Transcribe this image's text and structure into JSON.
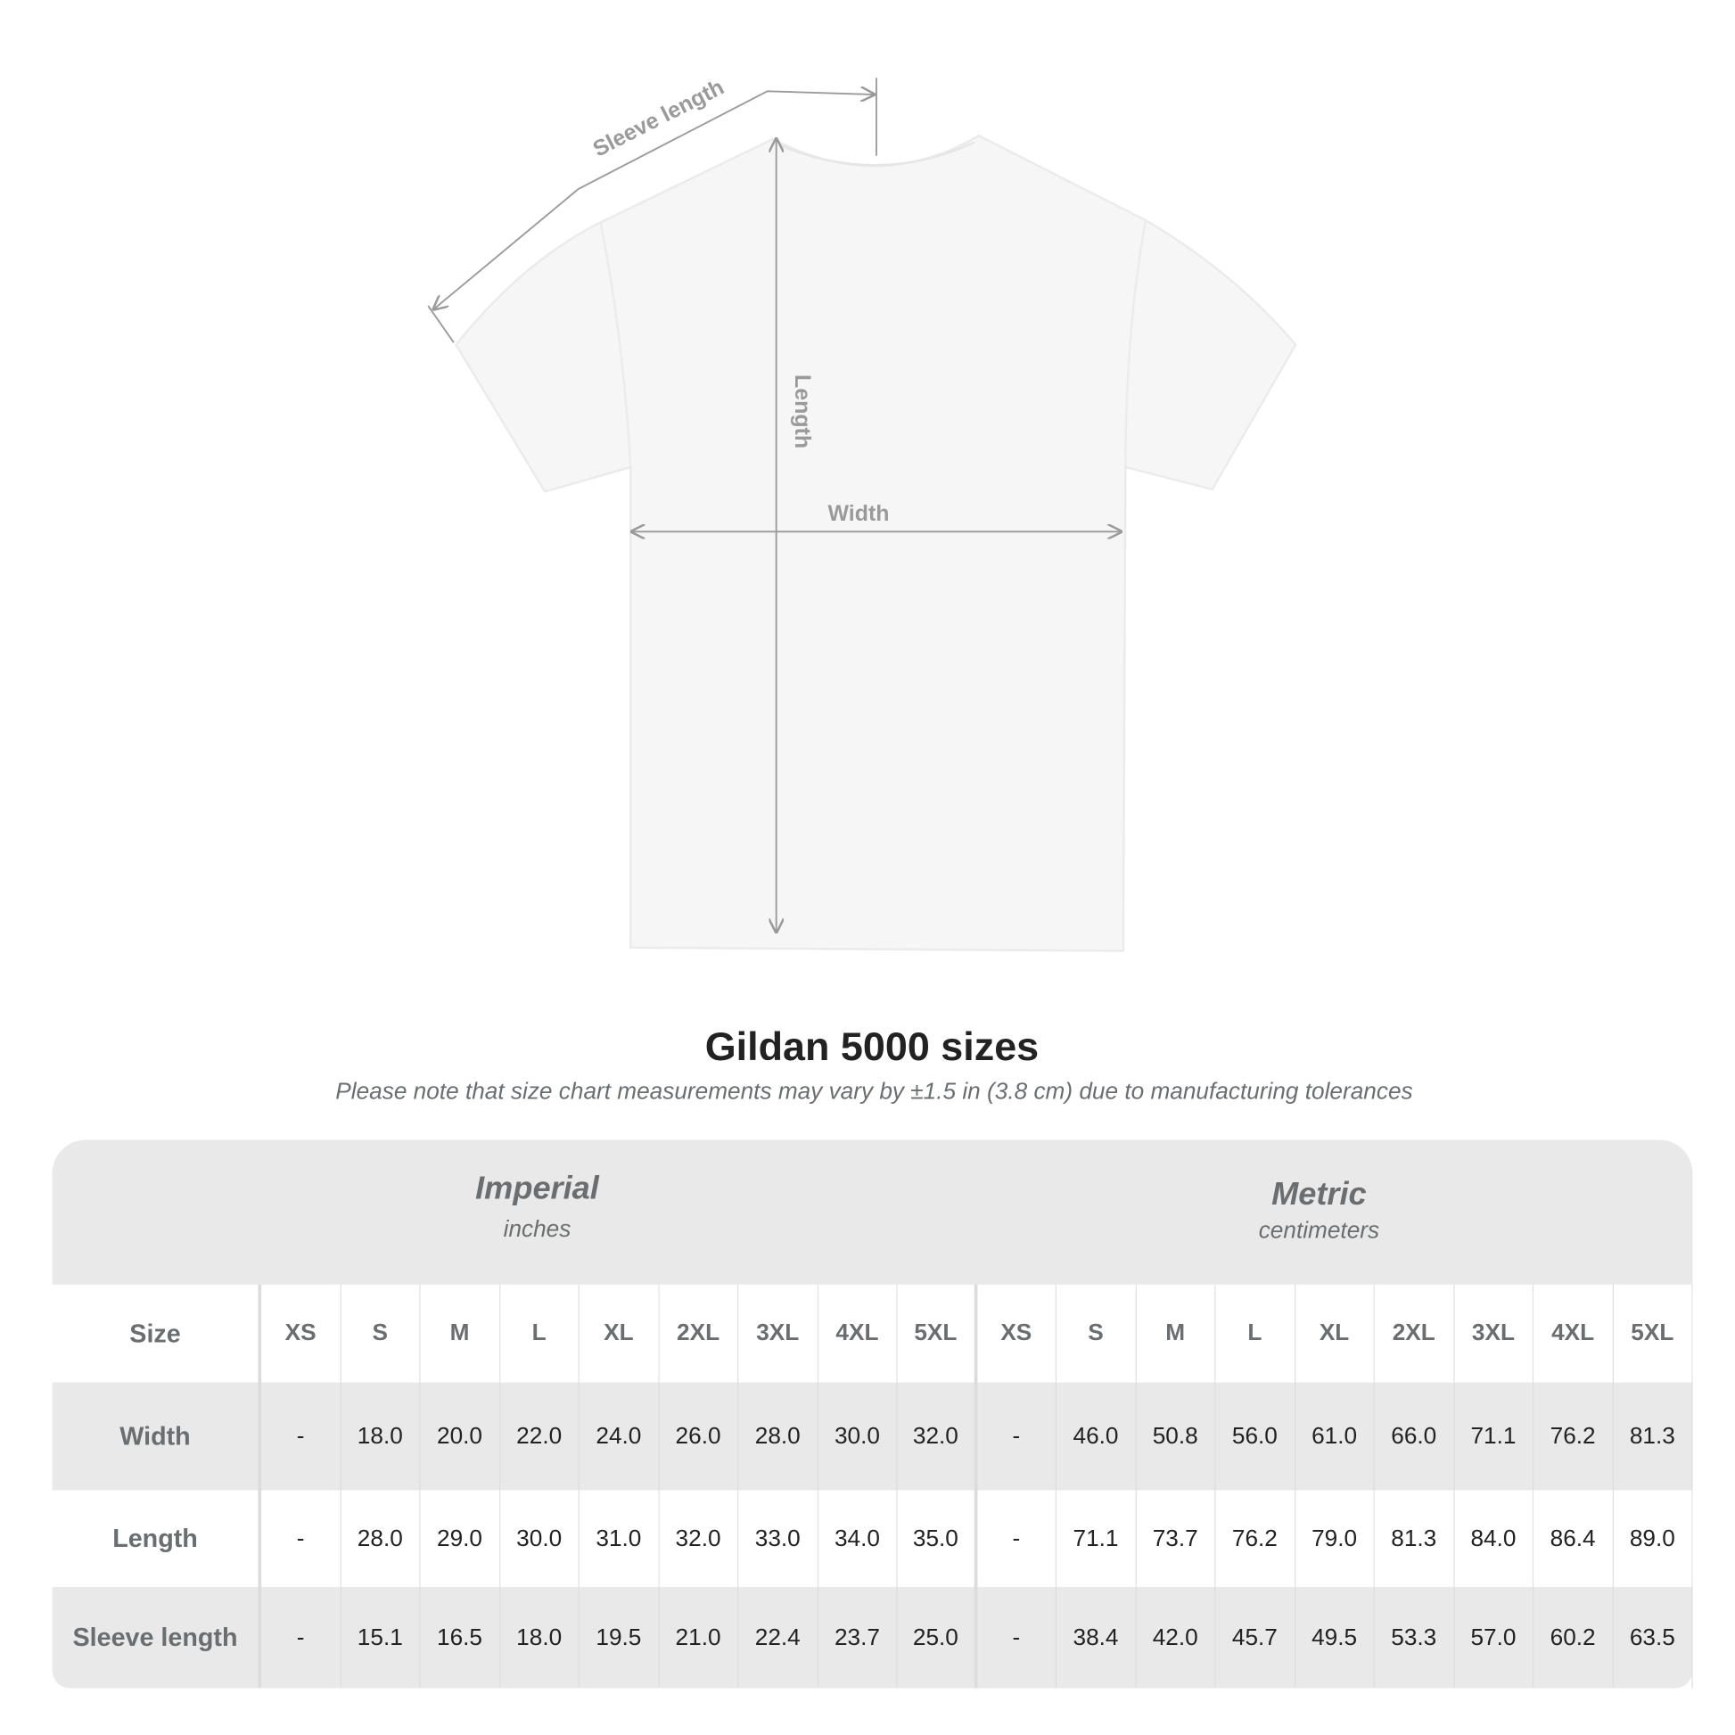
{
  "diagram": {
    "sleeve_label": "Sleeve length",
    "length_label": "Length",
    "width_label": "Width"
  },
  "title": "Gildan 5000 sizes",
  "subtitle": "Please note that size chart measurements may vary by ±1.5 in (3.8 cm) due to manufacturing tolerances",
  "table": {
    "imperial": {
      "name": "Imperial",
      "unit": "inches"
    },
    "metric": {
      "name": "Metric",
      "unit": "centimeters"
    },
    "size_label": "Size",
    "sizes": [
      "XS",
      "S",
      "M",
      "L",
      "XL",
      "2XL",
      "3XL",
      "4XL",
      "5XL",
      "XS",
      "S",
      "M",
      "L",
      "XL",
      "2XL",
      "3XL",
      "4XL",
      "5XL"
    ],
    "rows": [
      {
        "label": "Width",
        "values": [
          "-",
          "18.0",
          "20.0",
          "22.0",
          "24.0",
          "26.0",
          "28.0",
          "30.0",
          "32.0",
          "-",
          "46.0",
          "50.8",
          "56.0",
          "61.0",
          "66.0",
          "71.1",
          "76.2",
          "81.3"
        ]
      },
      {
        "label": "Length",
        "values": [
          "-",
          "28.0",
          "29.0",
          "30.0",
          "31.0",
          "32.0",
          "33.0",
          "34.0",
          "35.0",
          "-",
          "71.1",
          "73.7",
          "76.2",
          "79.0",
          "81.3",
          "84.0",
          "86.4",
          "89.0"
        ]
      },
      {
        "label": "Sleeve length",
        "values": [
          "-",
          "15.1",
          "16.5",
          "18.0",
          "19.5",
          "21.0",
          "22.4",
          "23.7",
          "25.0",
          "-",
          "38.4",
          "42.0",
          "45.7",
          "49.5",
          "53.3",
          "57.0",
          "60.2",
          "63.5"
        ]
      }
    ]
  },
  "colors": {
    "header_bg": "#e9e9e9",
    "label_text": "#6a6e70",
    "value_text": "#222222",
    "measure_line": "#9a9a9a"
  }
}
